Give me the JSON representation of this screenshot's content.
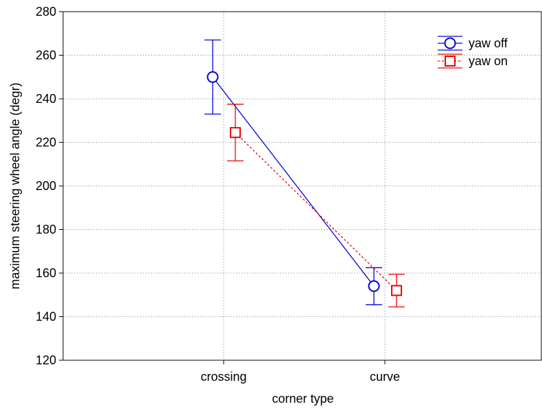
{
  "chart_data": {
    "type": "line",
    "xlabel": "corner type",
    "ylabel": "maximum steering wheel angle (degr)",
    "categories": [
      "crossing",
      "curve"
    ],
    "ylim": [
      120,
      280
    ],
    "yticks": [
      120,
      140,
      160,
      180,
      200,
      220,
      240,
      260,
      280
    ],
    "grid": true,
    "legend_position": "top-right",
    "series": [
      {
        "name": "yaw off",
        "color": "#0000dd",
        "marker": "circle",
        "line_style": "solid",
        "values": [
          250,
          154
        ],
        "err_low": [
          233,
          145.5
        ],
        "err_high": [
          267,
          162.5
        ]
      },
      {
        "name": "yaw on",
        "color": "#ee0000",
        "marker": "square",
        "line_style": "dotted",
        "values": [
          224.5,
          152
        ],
        "err_low": [
          211.5,
          144.5
        ],
        "err_high": [
          237.5,
          159.5
        ]
      }
    ]
  }
}
